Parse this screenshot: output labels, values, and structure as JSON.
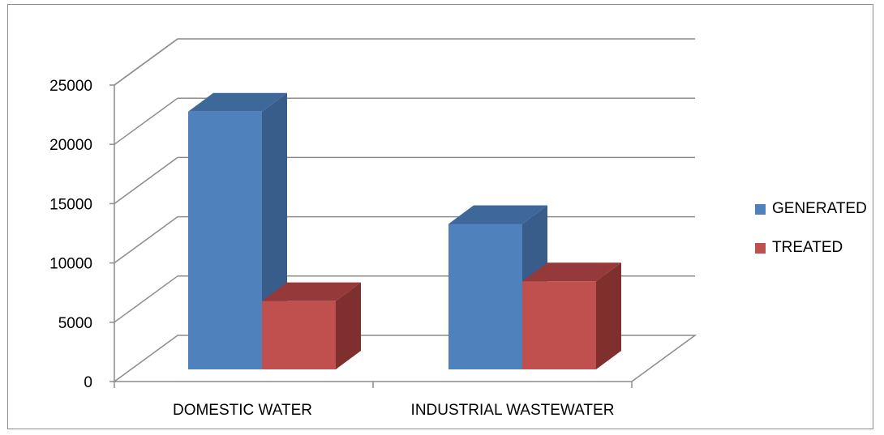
{
  "chart_data": {
    "type": "bar",
    "style": "3d-clustered-column",
    "categories": [
      "DOMESTIC WATER",
      "INDUSTRIAL WASTEWATER"
    ],
    "series": [
      {
        "name": "GENERATED",
        "values": [
          23400,
          13200
        ],
        "color": "#4f81bd"
      },
      {
        "name": "TREATED",
        "values": [
          6200,
          8000
        ],
        "color": "#c0504d"
      }
    ],
    "yticks": [
      "0",
      "5000",
      "10000",
      "15000",
      "20000",
      "25000"
    ],
    "ylim": [
      0,
      25000
    ],
    "grid": true,
    "legend_position": "right"
  }
}
